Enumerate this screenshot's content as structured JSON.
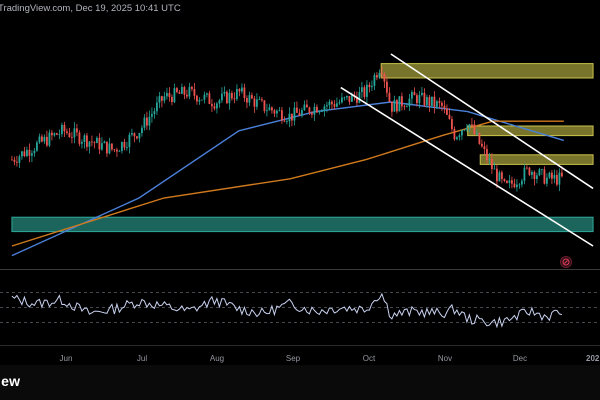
{
  "header": {
    "text": "TradingView.com, Dec 19, 2025 10:41 UTC"
  },
  "brand": {
    "text": "iew"
  },
  "time_axis": {
    "labels": [
      "Jun",
      "Jul",
      "Aug",
      "Sep",
      "Oct",
      "Nov",
      "Dec"
    ],
    "year_label": "202"
  },
  "icons": {
    "alert": "alert-icon"
  },
  "colors": {
    "background": "#000000",
    "candle_up": "#26a69a",
    "candle_down": "#ef5350",
    "ma_fast": "#4a7fd8",
    "ma_slow": "#d07a1d",
    "channel": "#ffffff",
    "supply_zone": "#c9c24a",
    "demand_zone": "#2fa89a",
    "rsi_line": "#c9d2f0"
  },
  "chart_data": [
    {
      "type": "candlestick",
      "description_series": "price",
      "x_labels": [
        "Jun",
        "Jul",
        "Aug",
        "Sep",
        "Oct",
        "Nov",
        "Dec"
      ],
      "close_path": [
        [
          "May 10",
          68
        ],
        [
          "May 20",
          71
        ],
        [
          "May 31",
          74
        ],
        [
          "Jun 10",
          72
        ],
        [
          "Jun 20",
          70
        ],
        [
          "Jun 30",
          74
        ],
        [
          "Jul 10",
          81
        ],
        [
          "Jul 20",
          82
        ],
        [
          "Jul 31",
          80
        ],
        [
          "Aug 10",
          82
        ],
        [
          "Aug 20",
          79
        ],
        [
          "Aug 31",
          77
        ],
        [
          "Sep 10",
          79
        ],
        [
          "Sep 20",
          80
        ],
        [
          "Sep 30",
          82
        ],
        [
          "Oct 6",
          88
        ],
        [
          "Oct 10",
          79
        ],
        [
          "Oct 20",
          81
        ],
        [
          "Oct 31",
          79
        ],
        [
          "Nov 5",
          73
        ],
        [
          "Nov 10",
          76
        ],
        [
          "Nov 20",
          66
        ],
        [
          "Nov 25",
          62
        ],
        [
          "Dec 5",
          66
        ],
        [
          "Dec 12",
          64
        ],
        [
          "Dec 19",
          64
        ]
      ],
      "moving_averages": [
        {
          "color": "ma_fast",
          "points": [
            [
              "May 10",
              48
            ],
            [
              "Jun 30",
              60
            ],
            [
              "Aug 10",
              74
            ],
            [
              "Sep 10",
              78
            ],
            [
              "Oct 10",
              80
            ],
            [
              "Nov 10",
              78
            ],
            [
              "Dec 19",
              72
            ]
          ]
        },
        {
          "color": "ma_slow",
          "points": [
            [
              "May 10",
              50
            ],
            [
              "Jul 10",
              60
            ],
            [
              "Aug 31",
              64
            ],
            [
              "Sep 30",
              68
            ],
            [
              "Oct 31",
              73
            ],
            [
              "Nov 20",
              76
            ],
            [
              "Dec 19",
              76
            ]
          ]
        }
      ],
      "zones": [
        {
          "kind": "supply",
          "from": "Oct 6",
          "to": "Dec 31",
          "low": 85,
          "high": 88
        },
        {
          "kind": "supply",
          "from": "Nov 10",
          "to": "Dec 31",
          "low": 73,
          "high": 75
        },
        {
          "kind": "supply",
          "from": "Nov 15",
          "to": "Dec 31",
          "low": 67,
          "high": 69
        },
        {
          "kind": "demand",
          "from": "May 10",
          "to": "Dec 31",
          "low": 53,
          "high": 56
        }
      ],
      "channel": [
        [
          [
            "Sep 20",
            83
          ],
          [
            "Dec 31",
            50
          ]
        ],
        [
          [
            "Oct 10",
            90
          ],
          [
            "Dec 31",
            62
          ]
        ]
      ]
    },
    {
      "type": "line",
      "description_series": "rsi",
      "ylim": [
        0,
        100
      ],
      "levels": [
        70,
        50,
        30
      ],
      "points": [
        [
          "May 10",
          62
        ],
        [
          "May 20",
          55
        ],
        [
          "May 31",
          60
        ],
        [
          "Jun 10",
          42
        ],
        [
          "Jun 20",
          48
        ],
        [
          "Jun 30",
          58
        ],
        [
          "Jul 10",
          52
        ],
        [
          "Jul 20",
          45
        ],
        [
          "Jul 31",
          60
        ],
        [
          "Aug 10",
          48
        ],
        [
          "Aug 20",
          42
        ],
        [
          "Aug 31",
          55
        ],
        [
          "Sep 10",
          45
        ],
        [
          "Sep 20",
          50
        ],
        [
          "Sep 30",
          48
        ],
        [
          "Oct 6",
          70
        ],
        [
          "Oct 10",
          40
        ],
        [
          "Oct 20",
          45
        ],
        [
          "Oct 31",
          42
        ],
        [
          "Nov 5",
          48
        ],
        [
          "Nov 10",
          35
        ],
        [
          "Nov 20",
          30
        ],
        [
          "Nov 25",
          32
        ],
        [
          "Dec 5",
          45
        ],
        [
          "Dec 12",
          38
        ],
        [
          "Dec 19",
          45
        ]
      ]
    }
  ]
}
